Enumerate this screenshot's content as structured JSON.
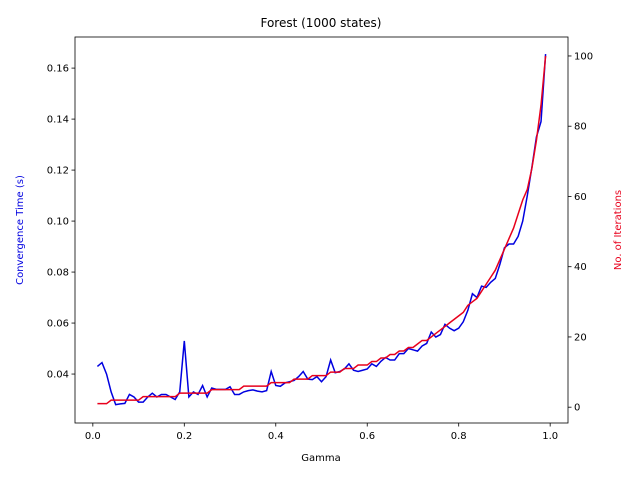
{
  "chart_data": {
    "type": "line",
    "title": "Forest (1000 states)",
    "xlabel": "Gamma",
    "ylabel": "Convergence Time (s)",
    "y2label": "No. of Iterations",
    "x": [
      0.01,
      0.02,
      0.03,
      0.04,
      0.05,
      0.06,
      0.07,
      0.08,
      0.09,
      0.1,
      0.11,
      0.12,
      0.13,
      0.14,
      0.15,
      0.16,
      0.17,
      0.18,
      0.19,
      0.2,
      0.21,
      0.22,
      0.23,
      0.24,
      0.25,
      0.26,
      0.27,
      0.28,
      0.29,
      0.3,
      0.31,
      0.32,
      0.33,
      0.34,
      0.35,
      0.36,
      0.37,
      0.38,
      0.39,
      0.4,
      0.41,
      0.42,
      0.43,
      0.44,
      0.45,
      0.46,
      0.47,
      0.48,
      0.49,
      0.5,
      0.51,
      0.52,
      0.53,
      0.54,
      0.55,
      0.56,
      0.57,
      0.58,
      0.59,
      0.6,
      0.61,
      0.62,
      0.63,
      0.64,
      0.65,
      0.66,
      0.67,
      0.68,
      0.69,
      0.7,
      0.71,
      0.72,
      0.73,
      0.74,
      0.75,
      0.76,
      0.77,
      0.78,
      0.79,
      0.8,
      0.81,
      0.82,
      0.83,
      0.84,
      0.85,
      0.86,
      0.87,
      0.88,
      0.89,
      0.9,
      0.91,
      0.92,
      0.93,
      0.94,
      0.95,
      0.96,
      0.97,
      0.98,
      0.99
    ],
    "series": [
      {
        "name": "Convergence Time (s)",
        "color": "#0000e0",
        "axis": "y",
        "values": [
          0.043,
          0.0445,
          0.04,
          0.033,
          0.028,
          0.0283,
          0.0285,
          0.032,
          0.031,
          0.029,
          0.029,
          0.031,
          0.0325,
          0.031,
          0.032,
          0.032,
          0.031,
          0.03,
          0.033,
          0.053,
          0.031,
          0.033,
          0.032,
          0.0355,
          0.031,
          0.0345,
          0.034,
          0.034,
          0.034,
          0.035,
          0.032,
          0.032,
          0.033,
          0.0335,
          0.0338,
          0.0333,
          0.033,
          0.0335,
          0.041,
          0.0355,
          0.0352,
          0.0365,
          0.037,
          0.0375,
          0.039,
          0.041,
          0.038,
          0.0378,
          0.039,
          0.037,
          0.039,
          0.0455,
          0.0405,
          0.041,
          0.042,
          0.044,
          0.0415,
          0.041,
          0.0415,
          0.042,
          0.044,
          0.043,
          0.045,
          0.0465,
          0.0455,
          0.0455,
          0.048,
          0.048,
          0.05,
          0.0495,
          0.049,
          0.051,
          0.052,
          0.0565,
          0.0545,
          0.0555,
          0.0595,
          0.058,
          0.057,
          0.058,
          0.0605,
          0.065,
          0.0715,
          0.07,
          0.0745,
          0.074,
          0.076,
          0.0775,
          0.083,
          0.0895,
          0.091,
          0.091,
          0.094,
          0.1,
          0.11,
          0.121,
          0.133,
          0.139,
          0.1655
        ]
      },
      {
        "name": "No. of Iterations",
        "color": "#e8001c",
        "axis": "y2",
        "values": [
          1,
          1,
          1,
          2,
          2,
          2,
          2,
          2,
          2,
          2,
          3,
          3,
          3,
          3,
          3,
          3,
          3,
          3,
          4,
          4,
          4,
          4,
          4,
          4,
          4,
          5,
          5,
          5,
          5,
          5,
          5,
          5,
          6,
          6,
          6,
          6,
          6,
          6,
          7,
          7,
          7,
          7,
          7,
          8,
          8,
          8,
          8,
          9,
          9,
          9,
          9,
          10,
          10,
          10,
          11,
          11,
          11,
          12,
          12,
          12,
          13,
          13,
          14,
          14,
          15,
          15,
          16,
          16,
          17,
          17,
          18,
          19,
          19,
          20,
          21,
          22,
          23,
          24,
          25,
          26,
          27,
          29,
          30,
          31,
          33,
          35,
          37,
          39,
          42,
          45,
          48,
          51,
          55,
          59,
          62,
          68,
          76,
          86,
          100
        ]
      }
    ],
    "xlim": [
      -0.039,
      1.039
    ],
    "xticks": [
      {
        "value": 0,
        "label": "0.0"
      },
      0.2,
      0.4,
      0.6,
      0.8,
      {
        "value": 1,
        "label": "1.0"
      }
    ],
    "ylim": [
      0.0208,
      0.1722
    ],
    "yticks": [
      0.04,
      0.06,
      0.08,
      {
        "value": 0.1,
        "label": "0.10"
      },
      0.12,
      0.14,
      0.16
    ],
    "y2lim": [
      -4.5,
      105.4
    ],
    "y2ticks": [
      0,
      20,
      40,
      60,
      80,
      100
    ]
  }
}
